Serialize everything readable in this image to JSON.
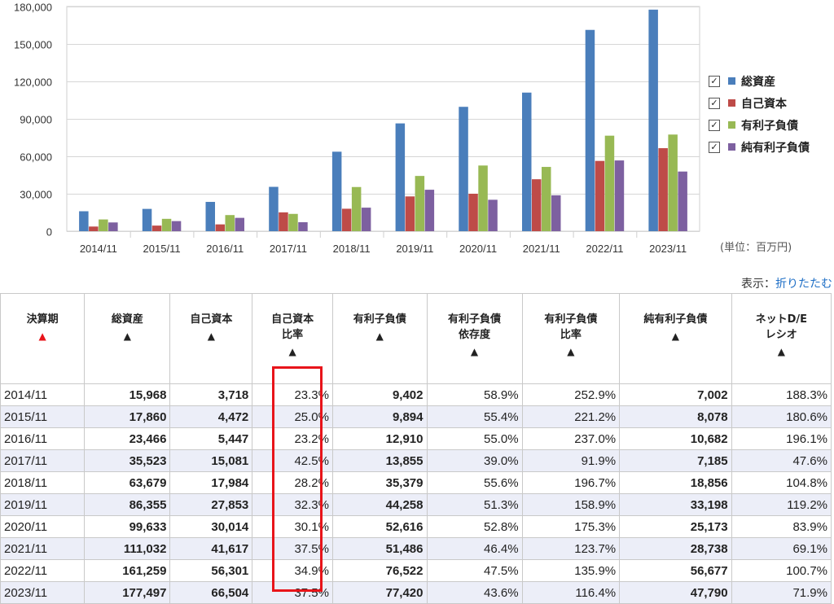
{
  "chart_data": {
    "type": "bar",
    "categories": [
      "2014/11",
      "2015/11",
      "2016/11",
      "2017/11",
      "2018/11",
      "2019/11",
      "2020/11",
      "2021/11",
      "2022/11",
      "2023/11"
    ],
    "series": [
      {
        "name": "総資産",
        "color": "#4a7ebb",
        "values": [
          15968,
          17860,
          23466,
          35523,
          63679,
          86355,
          99633,
          111032,
          161259,
          177497
        ]
      },
      {
        "name": "自己資本",
        "color": "#be4b48",
        "values": [
          3718,
          4472,
          5447,
          15081,
          17984,
          27853,
          30014,
          41617,
          56301,
          66504
        ]
      },
      {
        "name": "有利子負債",
        "color": "#98b954",
        "values": [
          9402,
          9894,
          12910,
          13855,
          35379,
          44258,
          52616,
          51486,
          76522,
          77420
        ]
      },
      {
        "name": "純有利子負債",
        "color": "#7d60a0",
        "values": [
          7002,
          8078,
          10682,
          7185,
          18856,
          33198,
          25173,
          28738,
          56677,
          47790
        ]
      }
    ],
    "ylim": [
      0,
      180000
    ],
    "yticks": [
      0,
      30000,
      60000,
      90000,
      120000,
      150000,
      180000
    ],
    "ytick_labels": [
      "0",
      "30,000",
      "60,000",
      "90,000",
      "120,000",
      "150,000",
      "180,000"
    ],
    "legend_position": "right",
    "grid": true
  },
  "legend": {
    "check": "✓",
    "items": [
      {
        "label": "総資産",
        "color": "#4a7ebb"
      },
      {
        "label": "自己資本",
        "color": "#be4b48"
      },
      {
        "label": "有利子負債",
        "color": "#98b954"
      },
      {
        "label": "純有利子負債",
        "color": "#7d60a0"
      }
    ]
  },
  "unit_label": "(単位：百万円)",
  "display_toggle": {
    "prefix": "表示：",
    "link": "折りたたむ"
  },
  "table": {
    "sort_arrow": "▲",
    "headers": [
      {
        "lines": [
          "決算期"
        ]
      },
      {
        "lines": [
          "総資産"
        ]
      },
      {
        "lines": [
          "自己資本"
        ]
      },
      {
        "lines": [
          "自己資本",
          "比率"
        ]
      },
      {
        "lines": [
          "有利子負債"
        ]
      },
      {
        "lines": [
          "有利子負債",
          "依存度"
        ]
      },
      {
        "lines": [
          "有利子負債",
          "比率"
        ]
      },
      {
        "lines": [
          "純有利子負債"
        ]
      },
      {
        "lines": [
          "ネットD/E",
          "レシオ"
        ]
      }
    ],
    "rows": [
      [
        "2014/11",
        "15,968",
        "3,718",
        "23.3%",
        "9,402",
        "58.9%",
        "252.9%",
        "7,002",
        "188.3%"
      ],
      [
        "2015/11",
        "17,860",
        "4,472",
        "25.0%",
        "9,894",
        "55.4%",
        "221.2%",
        "8,078",
        "180.6%"
      ],
      [
        "2016/11",
        "23,466",
        "5,447",
        "23.2%",
        "12,910",
        "55.0%",
        "237.0%",
        "10,682",
        "196.1%"
      ],
      [
        "2017/11",
        "35,523",
        "15,081",
        "42.5%",
        "13,855",
        "39.0%",
        "91.9%",
        "7,185",
        "47.6%"
      ],
      [
        "2018/11",
        "63,679",
        "17,984",
        "28.2%",
        "35,379",
        "55.6%",
        "196.7%",
        "18,856",
        "104.8%"
      ],
      [
        "2019/11",
        "86,355",
        "27,853",
        "32.3%",
        "44,258",
        "51.3%",
        "158.9%",
        "33,198",
        "119.2%"
      ],
      [
        "2020/11",
        "99,633",
        "30,014",
        "30.1%",
        "52,616",
        "52.8%",
        "175.3%",
        "25,173",
        "83.9%"
      ],
      [
        "2021/11",
        "111,032",
        "41,617",
        "37.5%",
        "51,486",
        "46.4%",
        "123.7%",
        "28,738",
        "69.1%"
      ],
      [
        "2022/11",
        "161,259",
        "56,301",
        "34.9%",
        "76,522",
        "47.5%",
        "135.9%",
        "56,677",
        "100.7%"
      ],
      [
        "2023/11",
        "177,497",
        "66,504",
        "37.5%",
        "77,420",
        "43.6%",
        "116.4%",
        "47,790",
        "71.9%"
      ]
    ]
  }
}
